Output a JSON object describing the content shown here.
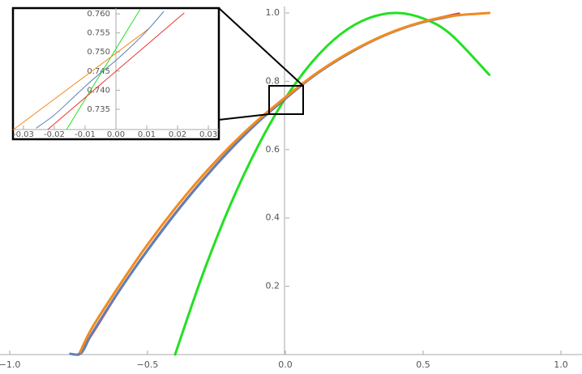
{
  "chart_data": [
    {
      "type": "line",
      "xlim": [
        -1,
        1
      ],
      "ylim": [
        0,
        1
      ],
      "xticks": [
        {
          "value": -1,
          "label": "−1.0"
        },
        {
          "value": -0.5,
          "label": "−0.5"
        },
        {
          "value": 0,
          "label": "0.0"
        },
        0.5,
        {
          "value": 1,
          "label": "1.0"
        }
      ],
      "yticks": [
        0.2,
        0.4,
        0.6,
        0.8,
        {
          "value": 1,
          "label": "1.0"
        }
      ],
      "series": [
        {
          "color": "#22e022",
          "x": [
            -0.4,
            -0.3,
            -0.2,
            -0.1,
            0,
            0.1,
            0.2,
            0.3,
            0.4,
            0.5,
            0.6,
            0.74
          ],
          "values": [
            0,
            0.234,
            0.4375,
            0.609,
            0.75,
            0.859,
            0.9375,
            0.984,
            1,
            0.984,
            0.9375,
            0.819
          ]
        },
        {
          "color": "#e8332a",
          "x": [
            -0.75,
            -0.7,
            -0.6,
            -0.5,
            -0.4,
            -0.3,
            -0.2,
            -0.1,
            0,
            0.1,
            0.2,
            0.3,
            0.4,
            0.5,
            0.63
          ],
          "values": [
            0,
            0.062,
            0.19,
            0.306,
            0.413,
            0.511,
            0.6,
            0.68,
            0.749,
            0.814,
            0.867,
            0.912,
            0.948,
            0.974,
            0.998
          ]
        },
        {
          "color": "#5e81b5",
          "x": [
            -0.78,
            -0.74,
            -0.7,
            -0.6,
            -0.5,
            -0.4,
            -0.3,
            -0.2,
            -0.1,
            0,
            0.1,
            0.2,
            0.3,
            0.4,
            0.5,
            0.63
          ],
          "values": [
            0.002,
            0.005,
            0.064,
            0.19,
            0.305,
            0.412,
            0.51,
            0.6,
            0.68,
            0.75,
            0.814,
            0.867,
            0.912,
            0.947,
            0.973,
            0.995
          ]
        },
        {
          "color": "#f28a1e",
          "x": [
            -0.745,
            -0.7,
            -0.6,
            -0.5,
            -0.4,
            -0.3,
            -0.2,
            -0.1,
            0,
            0.1,
            0.2,
            0.3,
            0.4,
            0.5,
            0.6,
            0.74
          ],
          "values": [
            0.007,
            0.08,
            0.205,
            0.322,
            0.428,
            0.524,
            0.61,
            0.686,
            0.753,
            0.816,
            0.869,
            0.913,
            0.948,
            0.974,
            0.991,
            1
          ]
        }
      ]
    },
    {
      "type": "line",
      "xlim": [
        -0.0334,
        0.0334
      ],
      "ylim": [
        0.7297,
        0.7615
      ],
      "xticks": [
        -0.03,
        -0.02,
        -0.01,
        {
          "value": 0,
          "label": "0.00"
        },
        0.01,
        0.02,
        0.03
      ],
      "yticks": [
        0.735,
        {
          "value": 0.74,
          "label": "0.740"
        },
        0.745,
        {
          "value": 0.75,
          "label": "0.750"
        },
        0.755,
        {
          "value": 0.76,
          "label": "0.760"
        }
      ],
      "series": [
        {
          "color": "#22e022",
          "x": [
            -0.016,
            0.0078
          ],
          "values": [
            0.7297,
            0.7611
          ]
        },
        {
          "color": "#e8332a",
          "x": [
            -0.0221,
            0.0221
          ],
          "values": [
            0.7297,
            0.7602
          ]
        },
        {
          "color": "#f28a1e",
          "x": [
            -0.0332,
            0.0105
          ],
          "values": [
            0.7297,
            0.756
          ]
        },
        {
          "color": "#5e81b5",
          "x": [
            -0.0258,
            -0.02,
            -0.015,
            -0.01,
            -0.005,
            0,
            0.005,
            0.01,
            0.0155
          ],
          "values": [
            0.7301,
            0.7335,
            0.7372,
            0.741,
            0.7445,
            0.7478,
            0.7515,
            0.7555,
            0.7606
          ]
        }
      ]
    }
  ]
}
